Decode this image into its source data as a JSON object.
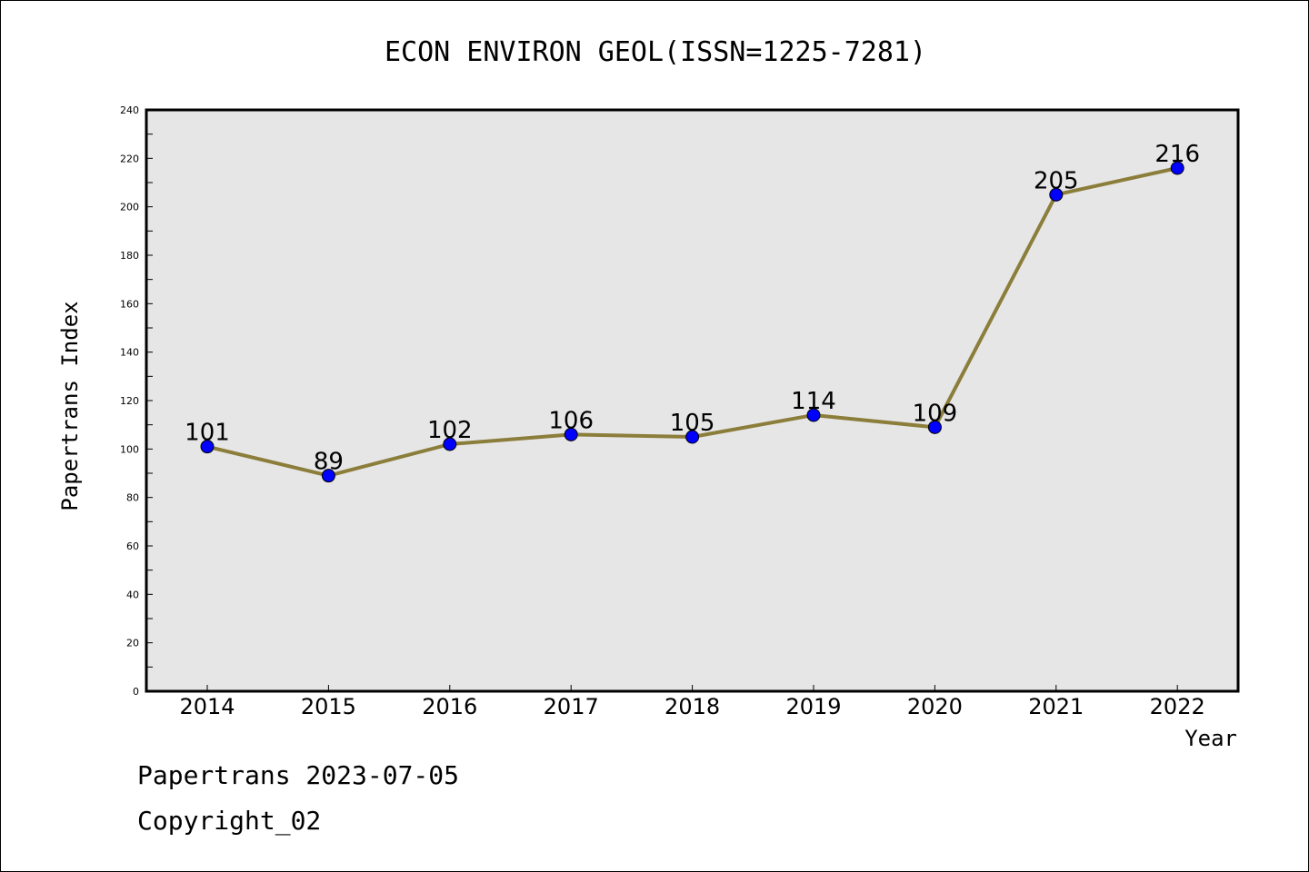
{
  "chart_data": {
    "type": "line",
    "title": "ECON ENVIRON GEOL(ISSN=1225-7281)",
    "xlabel": "Year",
    "ylabel": "Papertrans Index",
    "categories": [
      "2014",
      "2015",
      "2016",
      "2017",
      "2018",
      "2019",
      "2020",
      "2021",
      "2022"
    ],
    "values": [
      101,
      89,
      102,
      106,
      105,
      114,
      109,
      205,
      216
    ],
    "ylim": [
      0,
      240
    ],
    "yticks": [
      0,
      20,
      40,
      60,
      80,
      100,
      120,
      140,
      160,
      180,
      200,
      220,
      240
    ],
    "grid": false,
    "line_color": "#8B7D3A",
    "marker_color": "#0000FF",
    "plot_background": "#E6E6E6"
  },
  "footer": {
    "line1": "Papertrans 2023-07-05",
    "line2": "Copyright_02"
  }
}
